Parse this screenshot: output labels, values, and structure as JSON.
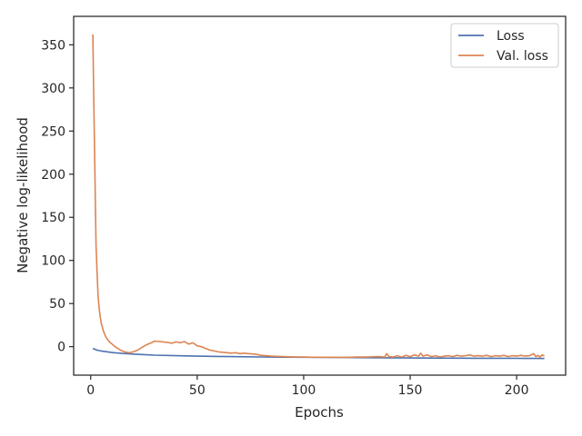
{
  "chart_data": {
    "type": "line",
    "title": "",
    "xlabel": "Epochs",
    "ylabel": "Negative log-likelihood",
    "xlim": [
      -8,
      223
    ],
    "ylim": [
      -33,
      383
    ],
    "xticks": [
      0,
      50,
      100,
      150,
      200
    ],
    "yticks": [
      0,
      50,
      100,
      150,
      200,
      250,
      300,
      350
    ],
    "grid": false,
    "legend_position": "top-right",
    "series": [
      {
        "name": "Loss",
        "color": "#4c72b0",
        "x": [
          1,
          3,
          5,
          8,
          10,
          15,
          20,
          25,
          30,
          40,
          50,
          60,
          70,
          80,
          90,
          100,
          110,
          120,
          130,
          140,
          150,
          160,
          170,
          180,
          190,
          200,
          205,
          210,
          213
        ],
        "y": [
          -2,
          -4,
          -5,
          -6,
          -6.8,
          -7.8,
          -8.6,
          -9.2,
          -9.8,
          -10.5,
          -11,
          -11.3,
          -11.6,
          -11.9,
          -12.1,
          -12.3,
          -12.5,
          -12.6,
          -12.8,
          -12.9,
          -13.1,
          -13.2,
          -13.3,
          -13.4,
          -13.4,
          -13.5,
          -13.6,
          -13.6,
          -13.7
        ]
      },
      {
        "name": "Val. loss",
        "color": "#dd8452",
        "x": [
          1,
          1.5,
          2,
          2.5,
          3,
          3.5,
          4,
          4.5,
          5,
          6,
          7,
          8,
          9,
          10,
          12,
          14,
          16,
          18,
          20,
          22,
          24,
          26,
          28,
          30,
          32,
          34,
          36,
          38,
          40,
          42,
          44,
          46,
          48,
          50,
          52,
          54,
          56,
          58,
          60,
          62,
          64,
          66,
          68,
          70,
          72,
          74,
          76,
          78,
          80,
          85,
          90,
          95,
          100,
          105,
          110,
          115,
          120,
          125,
          130,
          135,
          138,
          139,
          140,
          142,
          144,
          146,
          148,
          150,
          152,
          154,
          155,
          156,
          158,
          160,
          162,
          164,
          166,
          168,
          170,
          172,
          174,
          176,
          178,
          180,
          182,
          184,
          186,
          188,
          190,
          192,
          194,
          196,
          198,
          200,
          202,
          204,
          206,
          208,
          209,
          210,
          211,
          212,
          213
        ],
        "y": [
          362,
          280,
          200,
          118,
          85,
          58,
          44,
          34,
          27,
          18,
          12,
          8,
          5,
          3,
          -1,
          -4,
          -6,
          -7,
          -6,
          -4,
          -1,
          2,
          4,
          6.5,
          6,
          5.5,
          5,
          4,
          5.5,
          4.5,
          6,
          3,
          4.5,
          1,
          0,
          -2,
          -4,
          -5,
          -6,
          -6.5,
          -7,
          -7.5,
          -7,
          -8,
          -7.5,
          -8,
          -8.5,
          -9,
          -10,
          -11,
          -11.5,
          -11.8,
          -12,
          -12.2,
          -12.3,
          -12.4,
          -12.4,
          -12,
          -12,
          -11.5,
          -12,
          -8,
          -11.5,
          -12,
          -10.5,
          -12,
          -10,
          -11.5,
          -9.5,
          -11,
          -7.5,
          -11,
          -9.5,
          -11.5,
          -10.5,
          -12,
          -11,
          -10.5,
          -11.5,
          -10,
          -11,
          -10.5,
          -9.5,
          -11,
          -10.5,
          -11,
          -10,
          -11.5,
          -10.5,
          -11,
          -10,
          -11.5,
          -10.5,
          -11,
          -10,
          -11,
          -10.5,
          -8,
          -11.5,
          -10,
          -12,
          -9.5,
          -11
        ]
      }
    ]
  }
}
